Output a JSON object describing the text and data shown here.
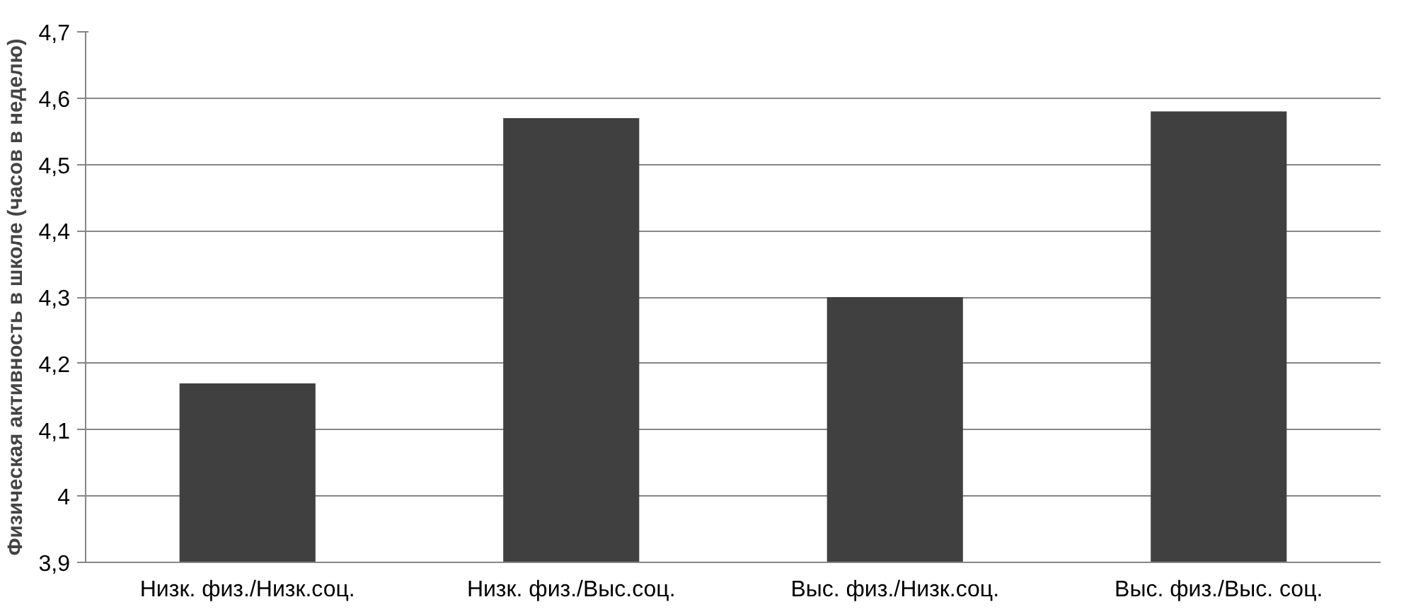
{
  "chart_data": {
    "type": "bar",
    "ylabel": "Физическая активность в школе (часов в неделю)",
    "categories": [
      "Низк. физ./Низк.соц.",
      "Низк. физ./Выс.соц.",
      "Выс. физ./Низк.соц.",
      "Выс. физ./Выс. соц."
    ],
    "values": [
      4.17,
      4.57,
      4.3,
      4.58
    ],
    "color": "#404040",
    "ylim": [
      3.9,
      4.7
    ],
    "yticks": [
      {
        "value": 3.9,
        "label": "3,9"
      },
      4,
      {
        "value": 4.1,
        "label": "4,1"
      },
      {
        "value": 4.2,
        "label": "4,2"
      },
      {
        "value": 4.3,
        "label": "4,3"
      },
      {
        "value": 4.4,
        "label": "4,4"
      },
      {
        "value": 4.5,
        "label": "4,5"
      },
      {
        "value": 4.6,
        "label": "4,6"
      },
      {
        "value": 4.7,
        "label": "4,7"
      }
    ],
    "grid": "y"
  }
}
